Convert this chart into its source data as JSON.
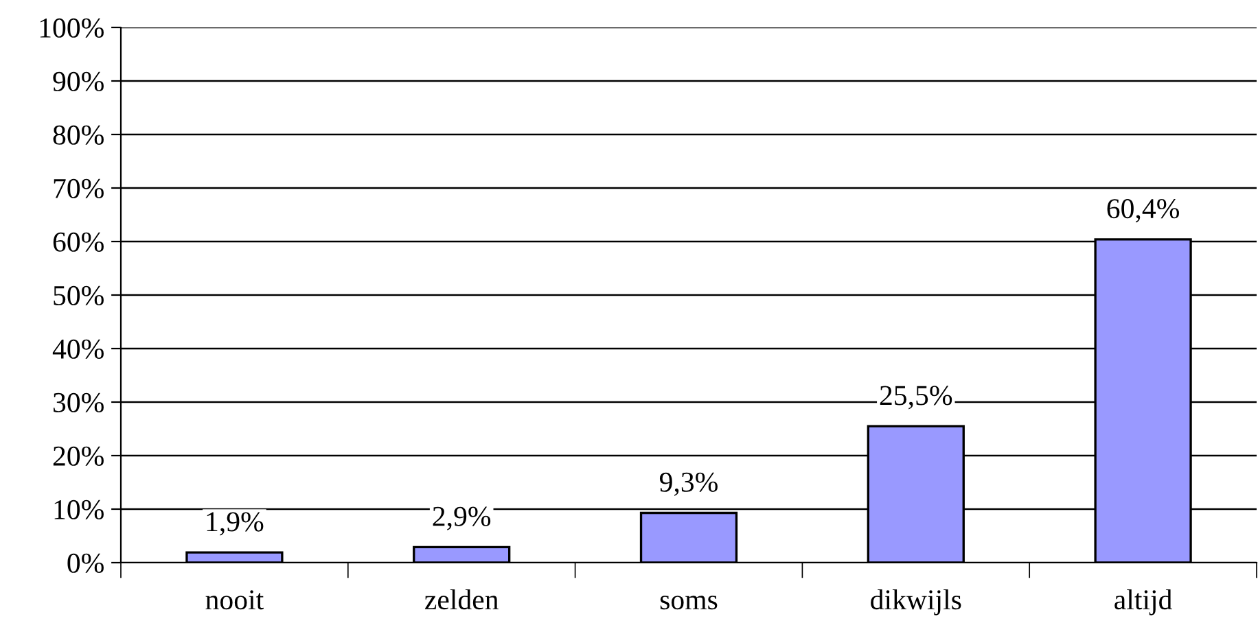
{
  "chart_data": {
    "type": "bar",
    "categories": [
      "nooit",
      "zelden",
      "soms",
      "dikwijls",
      "altijd"
    ],
    "values": [
      1.9,
      2.9,
      9.3,
      25.5,
      60.4
    ],
    "value_labels": [
      "1,9%",
      "2,9%",
      "9,3%",
      "25,5%",
      "60,4%"
    ],
    "color": "#9999ff",
    "ylim": [
      0,
      100
    ],
    "yticks": [
      {
        "value": 0,
        "label": "0%"
      },
      {
        "value": 10,
        "label": "10%"
      },
      {
        "value": 20,
        "label": "20%"
      },
      {
        "value": 30,
        "label": "30%"
      },
      {
        "value": 40,
        "label": "40%"
      },
      {
        "value": 50,
        "label": "50%"
      },
      {
        "value": 60,
        "label": "60%"
      },
      {
        "value": 70,
        "label": "70%"
      },
      {
        "value": 80,
        "label": "80%"
      },
      {
        "value": 90,
        "label": "90%"
      },
      {
        "value": 100,
        "label": "100%"
      }
    ],
    "grid": "y"
  }
}
